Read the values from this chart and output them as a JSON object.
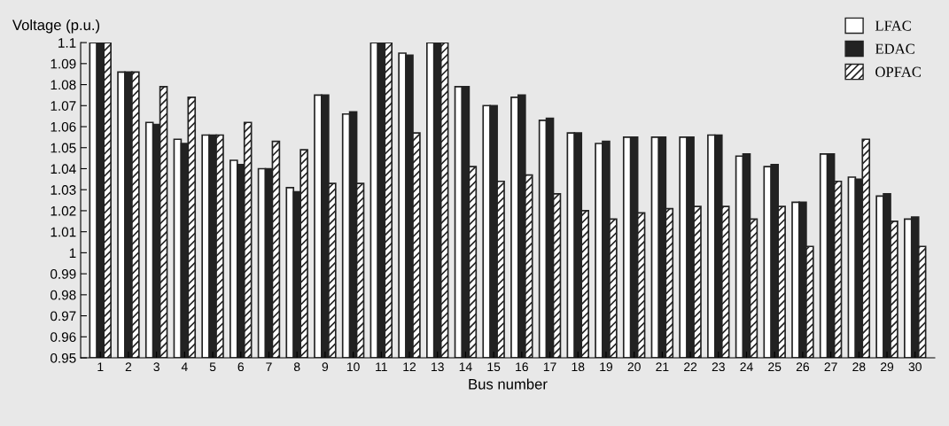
{
  "chart_data": {
    "type": "bar",
    "xlabel": "Bus number",
    "ylabel": "Voltage (p.u.)",
    "categories": [
      "1",
      "2",
      "3",
      "4",
      "5",
      "6",
      "7",
      "8",
      "9",
      "10",
      "11",
      "12",
      "13",
      "14",
      "15",
      "16",
      "17",
      "18",
      "19",
      "20",
      "21",
      "22",
      "23",
      "24",
      "25",
      "26",
      "27",
      "28",
      "29",
      "30"
    ],
    "series": [
      {
        "name": "LFAC",
        "color": "#ffffff",
        "values": [
          1.1,
          1.086,
          1.062,
          1.054,
          1.056,
          1.044,
          1.04,
          1.031,
          1.075,
          1.066,
          1.1,
          1.095,
          1.1,
          1.079,
          1.07,
          1.074,
          1.063,
          1.057,
          1.052,
          1.055,
          1.055,
          1.055,
          1.056,
          1.046,
          1.041,
          1.024,
          1.047,
          1.036,
          1.027,
          1.016
        ]
      },
      {
        "name": "EDAC",
        "color": "#222222",
        "values": [
          1.1,
          1.086,
          1.061,
          1.052,
          1.056,
          1.042,
          1.04,
          1.029,
          1.075,
          1.067,
          1.1,
          1.094,
          1.1,
          1.079,
          1.07,
          1.075,
          1.064,
          1.057,
          1.053,
          1.055,
          1.055,
          1.055,
          1.056,
          1.047,
          1.042,
          1.024,
          1.047,
          1.035,
          1.028,
          1.017
        ]
      },
      {
        "name": "OPFAC",
        "color": "#222222",
        "values": [
          1.1,
          1.086,
          1.079,
          1.074,
          1.056,
          1.062,
          1.053,
          1.049,
          1.033,
          1.033,
          1.1,
          1.057,
          1.1,
          1.041,
          1.034,
          1.037,
          1.028,
          1.02,
          1.016,
          1.019,
          1.021,
          1.022,
          1.022,
          1.016,
          1.022,
          1.003,
          1.034,
          1.054,
          1.015,
          1.003
        ]
      }
    ],
    "ylim": [
      0.95,
      1.1
    ],
    "yticks": [
      0.95,
      0.96,
      0.97,
      0.98,
      0.99,
      1,
      1.01,
      1.02,
      1.03,
      1.04,
      1.05,
      1.06,
      1.07,
      1.08,
      1.09,
      1.1
    ],
    "grid": false,
    "legend": "top right"
  }
}
